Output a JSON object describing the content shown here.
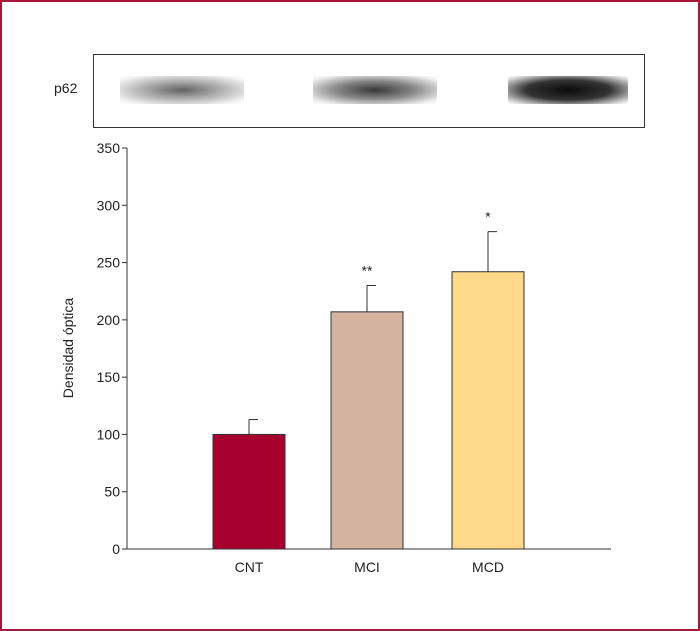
{
  "blot": {
    "label": "p62"
  },
  "chart_data": {
    "type": "bar",
    "title": "",
    "xlabel": "",
    "ylabel": "Densidad óptica",
    "ylim": [
      0,
      350
    ],
    "yticks": [
      0,
      50,
      100,
      150,
      200,
      250,
      300,
      350
    ],
    "categories": [
      "CNT",
      "MCI",
      "MCD"
    ],
    "values": [
      100,
      207,
      242
    ],
    "errors": [
      13,
      23,
      35
    ],
    "annotations": [
      "",
      "**",
      "*"
    ],
    "colors": [
      "#a8002e",
      "#d4b4a0",
      "#ffd98a"
    ],
    "grid": false,
    "legend": "none"
  }
}
